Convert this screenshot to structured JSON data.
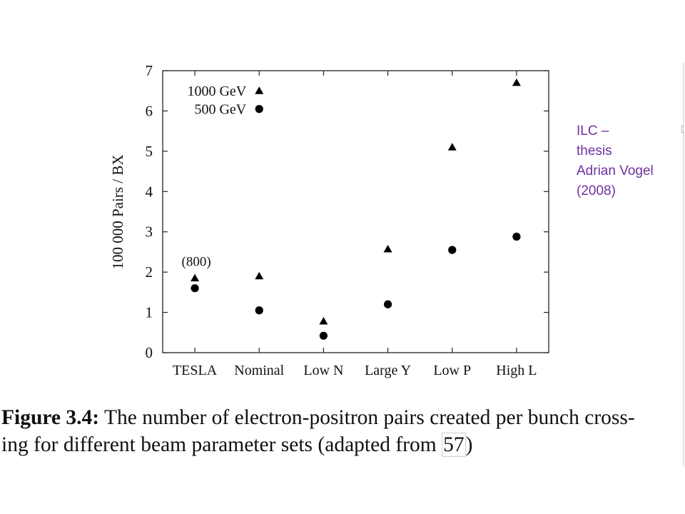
{
  "chart_data": {
    "type": "scatter",
    "title": "",
    "xlabel": "",
    "ylabel": "100 000 Pairs / BX",
    "categories": [
      "TESLA",
      "Nominal",
      "Low N",
      "Large Y",
      "Low P",
      "High L"
    ],
    "ylim": [
      0,
      7
    ],
    "yticks": [
      "0",
      "1",
      "2",
      "3",
      "4",
      "5",
      "6",
      "7"
    ],
    "grid": false,
    "legend_position": "top-left",
    "series": [
      {
        "name": "1000 GeV",
        "marker": "triangle",
        "values": [
          1.85,
          1.9,
          0.78,
          2.57,
          5.1,
          6.7
        ]
      },
      {
        "name": "500 GeV",
        "marker": "circle",
        "values": [
          1.6,
          1.05,
          0.42,
          1.2,
          2.55,
          2.88
        ]
      }
    ],
    "annotations": [
      {
        "text": "(800)",
        "category": "TESLA"
      }
    ]
  },
  "caption": {
    "label": "Figure 3.4:",
    "line1": " The number of electron-positron pairs created per bunch cross-",
    "line2_before": "ing for different beam parameter sets (adapted from ",
    "ref": "57",
    "line2_after": ")"
  },
  "side_note": {
    "line1": "ILC –",
    "line2": "thesis",
    "line3": "Adrian Vogel",
    "line4": "(2008)",
    "color": "#7030a0"
  }
}
